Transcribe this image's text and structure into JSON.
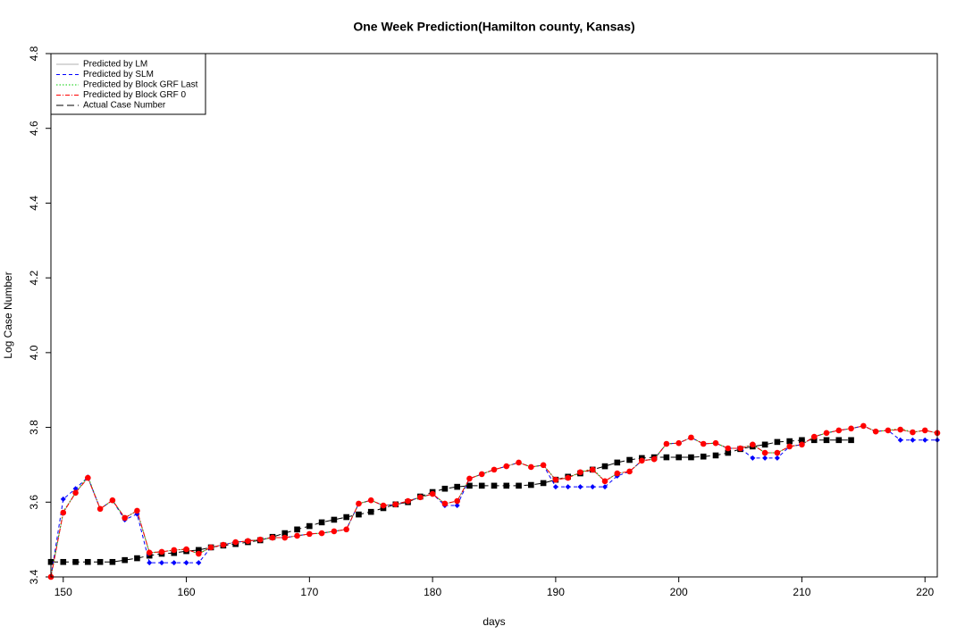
{
  "chart_data": {
    "type": "line",
    "title": "One Week Prediction(Hamilton county, Kansas)",
    "x_label": "days",
    "y_label": "Log Case Number",
    "xlim": [
      149,
      221
    ],
    "xticks": [
      150,
      160,
      170,
      180,
      190,
      200,
      210,
      220
    ],
    "ylim": [
      3.4,
      4.8
    ],
    "yticks": [
      3.4,
      3.6,
      3.8,
      {
        "value": 4,
        "label": "4.0"
      },
      4.2,
      4.4,
      4.6,
      4.8
    ],
    "legend": "top-left",
    "x": [
      149,
      150,
      151,
      152,
      153,
      154,
      155,
      156,
      157,
      158,
      159,
      160,
      161,
      162,
      163,
      164,
      165,
      166,
      167,
      168,
      169,
      170,
      171,
      172,
      173,
      174,
      175,
      176,
      177,
      178,
      179,
      180,
      181,
      182,
      183,
      184,
      185,
      186,
      187,
      188,
      189,
      190,
      191,
      192,
      193,
      194,
      195,
      196,
      197,
      198,
      199,
      200,
      201,
      202,
      203,
      204,
      205,
      206,
      207,
      208,
      209,
      210,
      211,
      212,
      213,
      214,
      215,
      216,
      217,
      218,
      219,
      220,
      221
    ],
    "series": [
      {
        "name": "Predicted by LM",
        "color": "#b0b0b0",
        "dash": "solid",
        "marker": "none",
        "values": [
          3.4,
          3.572,
          3.625,
          3.665,
          3.582,
          3.605,
          3.558,
          3.577,
          3.465,
          3.467,
          3.472,
          3.474,
          3.462,
          3.479,
          3.486,
          3.493,
          3.496,
          3.5,
          3.505,
          3.505,
          3.51,
          3.515,
          3.517,
          3.522,
          3.527,
          3.596,
          3.605,
          3.591,
          3.594,
          3.603,
          3.613,
          3.622,
          3.596,
          3.603,
          3.663,
          3.675,
          3.687,
          3.696,
          3.706,
          3.694,
          3.699,
          3.66,
          3.665,
          3.68,
          3.687,
          3.656,
          3.677,
          3.682,
          3.711,
          3.715,
          3.756,
          3.758,
          3.773,
          3.756,
          3.758,
          3.744,
          3.744,
          3.754,
          3.732,
          3.732,
          3.749,
          3.754,
          3.775,
          3.785,
          3.792,
          3.797,
          3.804,
          3.789,
          3.792,
          3.794,
          3.787,
          3.792,
          3.785
        ]
      },
      {
        "name": "Predicted by SLM",
        "color": "#0000ff",
        "dash": "dashed",
        "marker": "diamond",
        "values": [
          3.4,
          3.608,
          3.636,
          3.667,
          3.582,
          3.605,
          3.553,
          3.568,
          3.438,
          3.438,
          3.438,
          3.438,
          3.438,
          3.479,
          3.486,
          3.493,
          3.496,
          3.5,
          3.505,
          3.505,
          3.51,
          3.515,
          3.517,
          3.522,
          3.527,
          3.596,
          3.605,
          3.591,
          3.594,
          3.603,
          3.613,
          3.622,
          3.591,
          3.591,
          3.663,
          3.675,
          3.687,
          3.696,
          3.706,
          3.694,
          3.699,
          3.641,
          3.641,
          3.641,
          3.641,
          3.641,
          3.67,
          3.682,
          3.711,
          3.715,
          3.756,
          3.758,
          3.773,
          3.756,
          3.758,
          3.744,
          3.744,
          3.718,
          3.718,
          3.718,
          3.749,
          3.754,
          3.775,
          3.785,
          3.792,
          3.797,
          3.804,
          3.789,
          3.792,
          3.766,
          3.766,
          3.766,
          3.766
        ]
      },
      {
        "name": "Predicted by Block GRF Last",
        "color": "#00cc00",
        "dash": "dotted",
        "marker": "none",
        "values": [
          3.4,
          3.575,
          3.625,
          3.67,
          3.582,
          3.605,
          3.558,
          3.577,
          3.465,
          3.467,
          3.472,
          3.474,
          3.462,
          3.479,
          3.486,
          3.493,
          3.496,
          3.5,
          3.505,
          3.505,
          3.51,
          3.515,
          3.517,
          3.522,
          3.527,
          3.596,
          3.605,
          3.591,
          3.594,
          3.603,
          3.613,
          3.622,
          3.596,
          3.603,
          3.663,
          3.675,
          3.687,
          3.696,
          3.706,
          3.694,
          3.699,
          3.66,
          3.665,
          3.68,
          3.69,
          3.656,
          3.677,
          3.682,
          3.711,
          3.715,
          3.756,
          3.758,
          3.773,
          3.756,
          3.758,
          3.744,
          3.744,
          3.754,
          3.732,
          3.732,
          3.749,
          3.754,
          3.775,
          3.785,
          3.792,
          3.797,
          3.804,
          3.789,
          3.792,
          3.797,
          3.787,
          3.792,
          3.785
        ]
      },
      {
        "name": "Predicted by Block GRF 0",
        "color": "#ff0000",
        "dash": "dashdot",
        "marker": "circle",
        "values": [
          3.4,
          3.572,
          3.625,
          3.665,
          3.582,
          3.605,
          3.558,
          3.577,
          3.465,
          3.467,
          3.472,
          3.474,
          3.462,
          3.479,
          3.486,
          3.493,
          3.496,
          3.5,
          3.505,
          3.505,
          3.51,
          3.515,
          3.517,
          3.522,
          3.527,
          3.596,
          3.605,
          3.591,
          3.594,
          3.603,
          3.613,
          3.622,
          3.596,
          3.603,
          3.663,
          3.675,
          3.687,
          3.696,
          3.706,
          3.694,
          3.699,
          3.66,
          3.665,
          3.68,
          3.687,
          3.656,
          3.677,
          3.682,
          3.711,
          3.715,
          3.756,
          3.758,
          3.773,
          3.756,
          3.758,
          3.744,
          3.744,
          3.754,
          3.732,
          3.732,
          3.749,
          3.754,
          3.775,
          3.785,
          3.792,
          3.797,
          3.804,
          3.789,
          3.792,
          3.794,
          3.787,
          3.792,
          3.785
        ]
      },
      {
        "name": "Actual Case Number",
        "color": "#000000",
        "dash": "longdash",
        "marker": "square",
        "values": [
          3.44,
          3.44,
          3.44,
          3.44,
          3.44,
          3.44,
          3.445,
          3.45,
          3.457,
          3.462,
          3.464,
          3.469,
          3.472,
          3.479,
          3.484,
          3.488,
          3.493,
          3.498,
          3.507,
          3.517,
          3.527,
          3.536,
          3.546,
          3.553,
          3.56,
          3.567,
          3.574,
          3.584,
          3.594,
          3.6,
          3.615,
          3.627,
          3.636,
          3.641,
          3.644,
          3.644,
          3.644,
          3.644,
          3.644,
          3.646,
          3.651,
          3.66,
          3.668,
          3.677,
          3.687,
          3.696,
          3.706,
          3.713,
          3.718,
          3.72,
          3.72,
          3.72,
          3.72,
          3.722,
          3.725,
          3.732,
          3.742,
          3.749,
          3.754,
          3.761,
          3.763,
          3.766,
          3.766,
          3.766,
          3.766,
          3.766,
          null,
          null,
          null,
          null,
          null,
          null,
          null
        ]
      }
    ]
  }
}
